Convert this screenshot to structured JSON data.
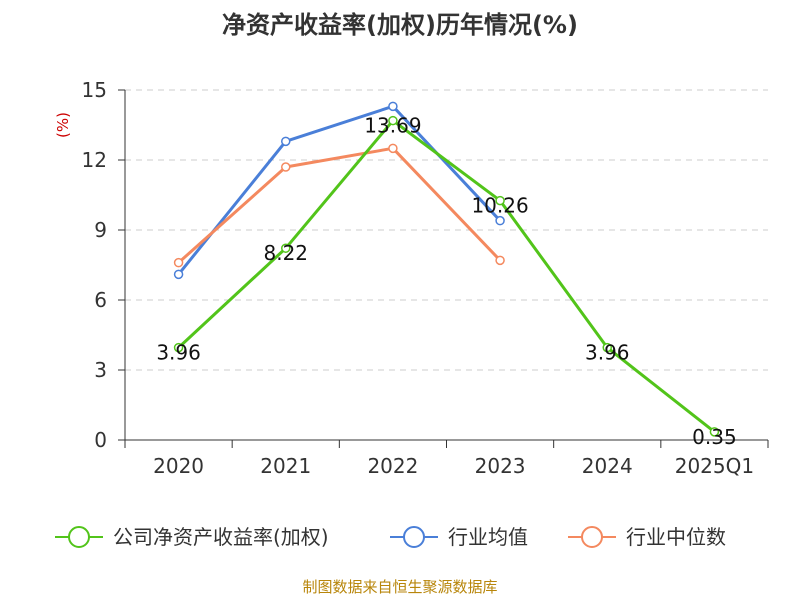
{
  "chart_data": {
    "type": "line",
    "title": "净资产收益率(加权)历年情况(%)",
    "ylabel": "(%)",
    "xlabel": "",
    "categories": [
      "2020",
      "2021",
      "2022",
      "2023",
      "2024",
      "2025Q1"
    ],
    "ylim": [
      0,
      15
    ],
    "yticks": [
      0,
      3,
      6,
      9,
      12,
      15
    ],
    "grid": true,
    "legend_position": "bottom",
    "series": [
      {
        "name": "公司净资产收益率(加权)",
        "color": "#52c41a",
        "values": [
          3.96,
          8.22,
          13.69,
          10.26,
          3.96,
          0.35
        ],
        "labels": [
          "3.96",
          "8.22",
          "13.69",
          "10.26",
          "3.96",
          "0.35"
        ]
      },
      {
        "name": "行业均值",
        "color": "#4a7fd8",
        "values": [
          7.1,
          12.8,
          14.3,
          9.4,
          null,
          null
        ]
      },
      {
        "name": "行业中位数",
        "color": "#f4895f",
        "values": [
          7.6,
          11.7,
          12.5,
          7.7,
          null,
          null
        ]
      }
    ]
  },
  "source": "制图数据来自恒生聚源数据库"
}
